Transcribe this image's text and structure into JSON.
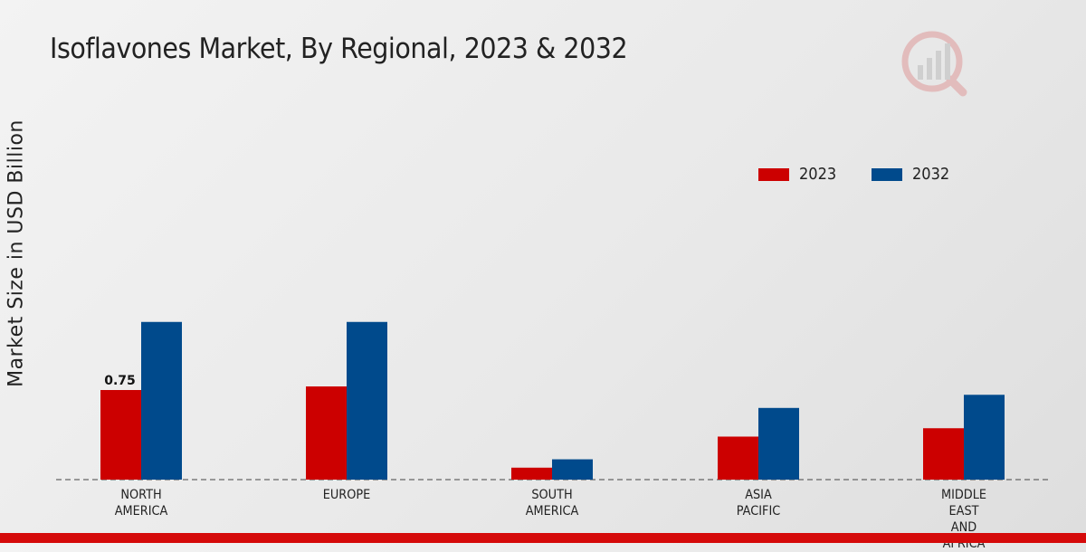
{
  "chart_data": {
    "type": "bar",
    "title": "Isoflavones Market, By Regional, 2023 & 2032",
    "xlabel": "",
    "ylabel": "Market Size in USD Billion",
    "ylim": [
      0,
      3
    ],
    "categories": [
      "NORTH\nAMERICA",
      "EUROPE",
      "SOUTH\nAMERICA",
      "ASIA\nPACIFIC",
      "MIDDLE\nEAST\nAND\nAFRICA"
    ],
    "series": [
      {
        "name": "2023",
        "color": "#cc0000",
        "values": [
          0.75,
          0.78,
          0.1,
          0.36,
          0.43
        ]
      },
      {
        "name": "2032",
        "color": "#004a8c",
        "values": [
          1.32,
          1.32,
          0.17,
          0.6,
          0.71
        ]
      }
    ],
    "data_labels": [
      {
        "series": 0,
        "index": 0,
        "text": "0.75"
      }
    ],
    "legend_position": "top-right",
    "grid": false
  },
  "legend": {
    "items": [
      {
        "label": "2023",
        "color": "#cc0000"
      },
      {
        "label": "2032",
        "color": "#004a8c"
      }
    ]
  },
  "brand": {
    "accent": "#d50a0a"
  }
}
